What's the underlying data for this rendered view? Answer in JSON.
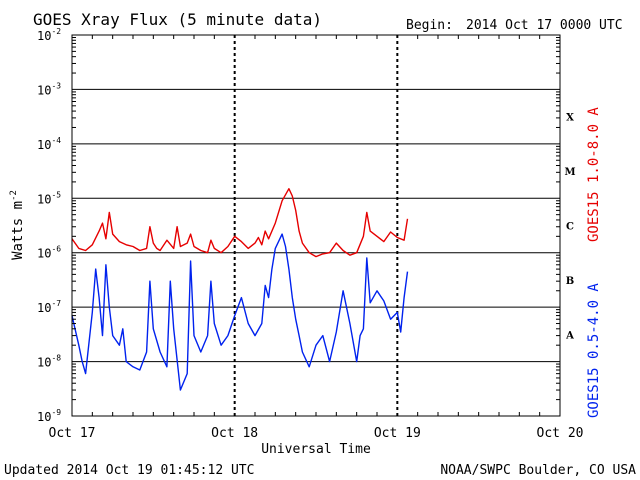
{
  "page": {
    "title": "GOES Xray Flux (5 minute data)",
    "begin_label": "Begin:",
    "begin_value": "2014 Oct 17 0000 UTC",
    "updated": "Updated 2014 Oct 19 01:45:12 UTC",
    "credit": "NOAA/SWPC Boulder, CO USA"
  },
  "chart_data": {
    "type": "line",
    "title": "GOES Xray Flux (5 minute data)",
    "xlabel": "Universal Time",
    "ylabel": "Watts m-2",
    "ylabel_base": "Watts m",
    "ylabel_exp": "-2",
    "yscale": "log",
    "ylim": [
      1e-09,
      0.01
    ],
    "xlim": [
      "2014-10-17 00:00",
      "2014-10-20 00:00"
    ],
    "x_ticks": [
      "Oct 17",
      "Oct 18",
      "Oct 19",
      "Oct 20"
    ],
    "y_ticks": [
      {
        "base": "10",
        "exp": "-2",
        "value": 0.01
      },
      {
        "base": "10",
        "exp": "-3",
        "value": 0.001
      },
      {
        "base": "10",
        "exp": "-4",
        "value": 0.0001
      },
      {
        "base": "10",
        "exp": "-5",
        "value": 1e-05
      },
      {
        "base": "10",
        "exp": "-6",
        "value": 1e-06
      },
      {
        "base": "10",
        "exp": "-7",
        "value": 1e-07
      },
      {
        "base": "10",
        "exp": "-8",
        "value": 1e-08
      },
      {
        "base": "10",
        "exp": "-9",
        "value": 1e-09
      }
    ],
    "flare_classes": [
      {
        "label": "X",
        "value": 0.0001
      },
      {
        "label": "M",
        "value": 1e-05
      },
      {
        "label": "C",
        "value": 1e-06
      },
      {
        "label": "B",
        "value": 1e-07
      },
      {
        "label": "A",
        "value": 1e-08
      }
    ],
    "grid": true,
    "series": [
      {
        "name": "GOES15 1.0-8.0 A",
        "color": "#e60000",
        "x_hours": [
          0,
          1,
          2,
          3,
          4,
          4.5,
          5,
          5.5,
          6,
          7,
          8,
          9,
          10,
          11,
          11.5,
          12,
          12.5,
          13,
          14,
          15,
          15.5,
          16,
          17,
          17.5,
          18,
          19,
          20,
          20.5,
          21,
          22,
          23,
          24,
          25,
          26,
          27,
          27.5,
          28,
          28.5,
          29,
          30,
          31,
          32,
          32.5,
          33,
          33.5,
          34,
          35,
          36,
          37,
          38,
          39,
          40,
          41,
          42,
          43,
          43.5,
          44,
          45,
          46,
          47,
          48,
          49,
          49.5
        ],
        "values": [
          1.8e-06,
          1.2e-06,
          1.1e-06,
          1.4e-06,
          2.5e-06,
          3.5e-06,
          1.8e-06,
          5.5e-06,
          2.2e-06,
          1.6e-06,
          1.4e-06,
          1.3e-06,
          1.1e-06,
          1.2e-06,
          3e-06,
          1.5e-06,
          1.2e-06,
          1.1e-06,
          1.7e-06,
          1.2e-06,
          3e-06,
          1.3e-06,
          1.5e-06,
          2.2e-06,
          1.3e-06,
          1.1e-06,
          1e-06,
          1.7e-06,
          1.2e-06,
          1e-06,
          1.3e-06,
          2e-06,
          1.6e-06,
          1.2e-06,
          1.5e-06,
          1.9e-06,
          1.4e-06,
          2.5e-06,
          1.8e-06,
          3.5e-06,
          9e-06,
          1.5e-05,
          1.1e-05,
          6e-06,
          2.5e-06,
          1.5e-06,
          1e-06,
          8.5e-07,
          9.5e-07,
          1e-06,
          1.5e-06,
          1.1e-06,
          9e-07,
          1e-06,
          2e-06,
          5.5e-06,
          2.5e-06,
          2e-06,
          1.6e-06,
          2.4e-06,
          1.9e-06,
          1.7e-06,
          4.2e-06
        ]
      },
      {
        "name": "GOES15 0.5-4.0 A",
        "color": "#0022ee",
        "x_hours": [
          0,
          1,
          1.5,
          2,
          3,
          3.5,
          4,
          4.5,
          5,
          5.5,
          6,
          7,
          7.5,
          8,
          9,
          10,
          11,
          11.5,
          12,
          13,
          14,
          14.5,
          15,
          16,
          17,
          17.5,
          18,
          19,
          20,
          20.5,
          21,
          22,
          23,
          24,
          25,
          26,
          27,
          28,
          28.5,
          29,
          29.5,
          30,
          31,
          31.5,
          32,
          32.5,
          33,
          33.5,
          34,
          35,
          36,
          37,
          38,
          39,
          40,
          41,
          42,
          42.5,
          43,
          43.5,
          44,
          45,
          46,
          47,
          48,
          48.5,
          49,
          49.5
        ],
        "values": [
          7e-08,
          2e-08,
          1e-08,
          6e-09,
          8e-08,
          5e-07,
          1.5e-07,
          3e-08,
          6e-07,
          1e-07,
          3e-08,
          2e-08,
          4e-08,
          1e-08,
          8e-09,
          7e-09,
          1.5e-08,
          3e-07,
          4e-08,
          1.5e-08,
          8e-09,
          3e-07,
          4e-08,
          3e-09,
          6e-09,
          7e-07,
          3e-08,
          1.5e-08,
          3e-08,
          3e-07,
          5e-08,
          2e-08,
          3e-08,
          7e-08,
          1.5e-07,
          5e-08,
          3e-08,
          5e-08,
          2.5e-07,
          1.5e-07,
          5e-07,
          1.2e-06,
          2.2e-06,
          1.3e-06,
          5e-07,
          1.5e-07,
          6e-08,
          3e-08,
          1.5e-08,
          8e-09,
          2e-08,
          3e-08,
          1e-08,
          3.5e-08,
          2e-07,
          5e-08,
          1e-08,
          3e-08,
          4e-08,
          8e-07,
          1.2e-07,
          2e-07,
          1.3e-07,
          6e-08,
          8e-08,
          3.5e-08,
          1.5e-07,
          4.5e-07
        ]
      }
    ]
  }
}
